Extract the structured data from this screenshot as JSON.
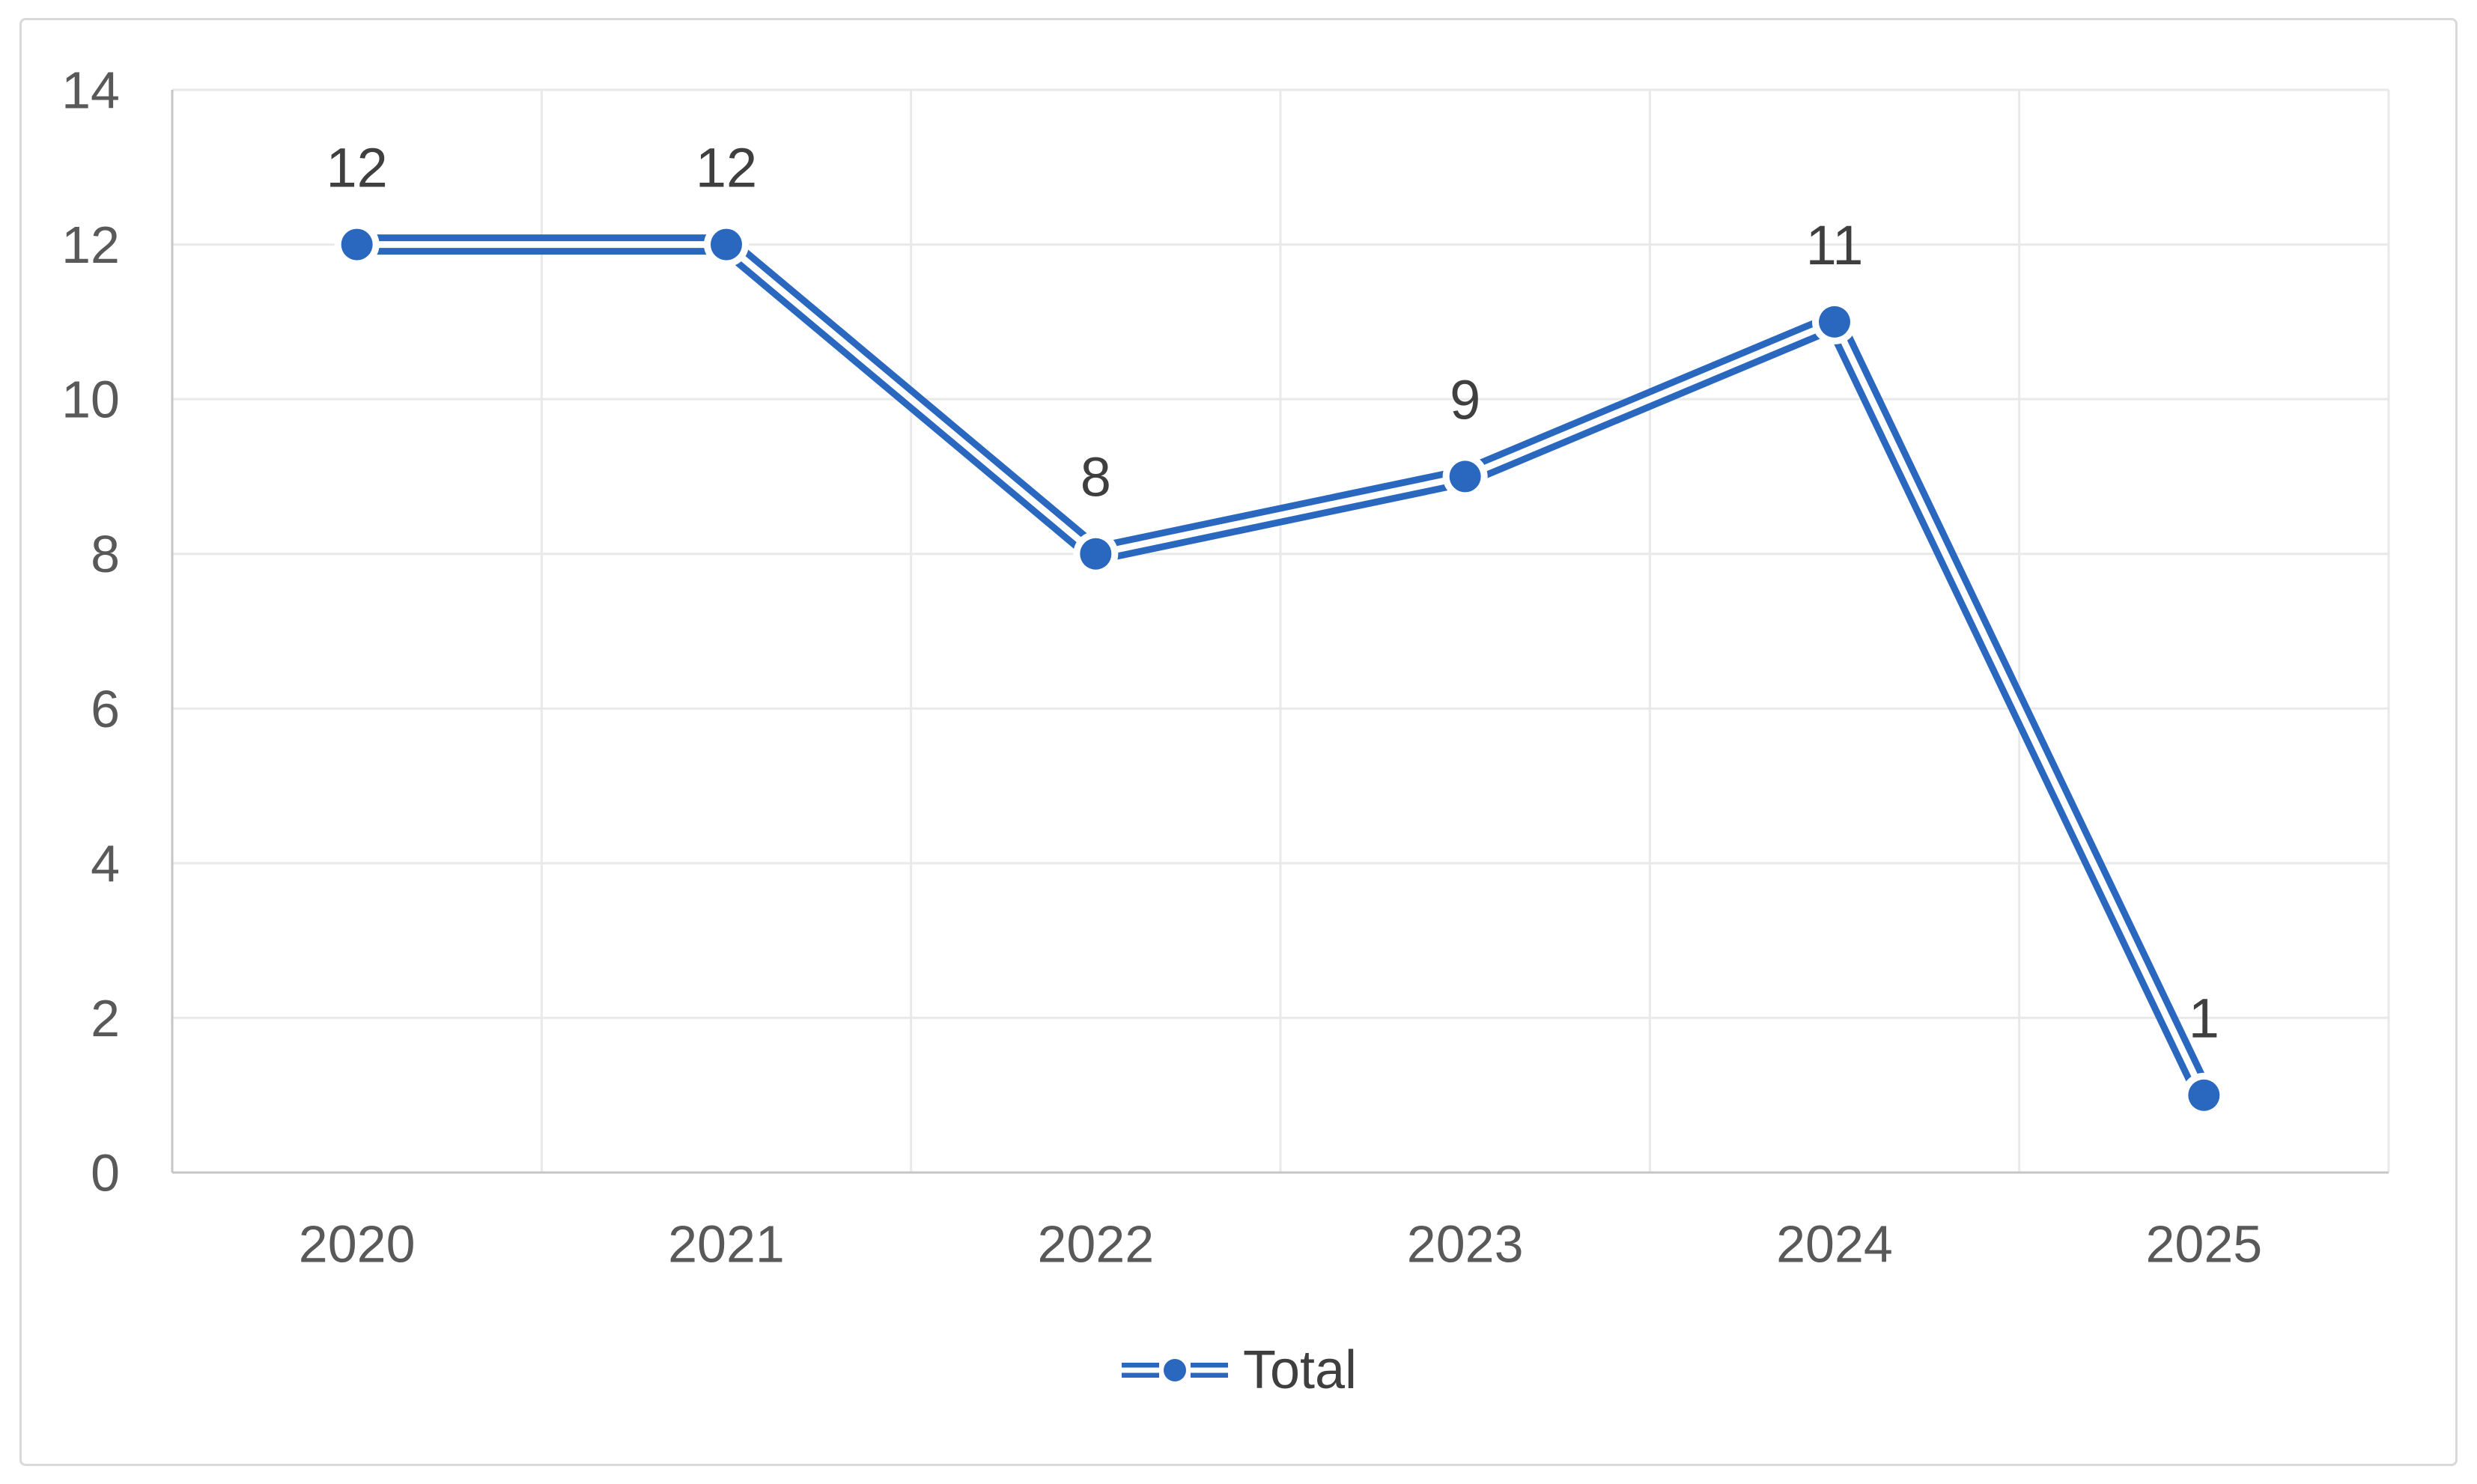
{
  "chart_data": {
    "type": "line",
    "title": "",
    "categories": [
      "2020",
      "2021",
      "2022",
      "2023",
      "2024",
      "2025"
    ],
    "series": [
      {
        "name": "Total",
        "values": [
          12,
          12,
          8,
          9,
          11,
          1
        ]
      }
    ],
    "data_labels": [
      "12",
      "12",
      "8",
      "9",
      "11",
      "1"
    ],
    "xlabel": "",
    "ylabel": "",
    "ylim": [
      0,
      14
    ],
    "ytick_step": 2,
    "ytick_labels": [
      "0",
      "2",
      "4",
      "6",
      "8",
      "10",
      "12",
      "14"
    ],
    "grid": true,
    "line_style": "double",
    "marker": "circle",
    "legend_position": "bottom",
    "legend_entries": [
      "Total"
    ],
    "colors": {
      "series": "#2A68C0",
      "data_label": "#3F3F3F",
      "tick_label": "#595959",
      "gridline": "#E9E9E9",
      "axis_line": "#C6C6C6",
      "frame_border": "#D9D9D9",
      "background": "#FFFFFF"
    }
  }
}
